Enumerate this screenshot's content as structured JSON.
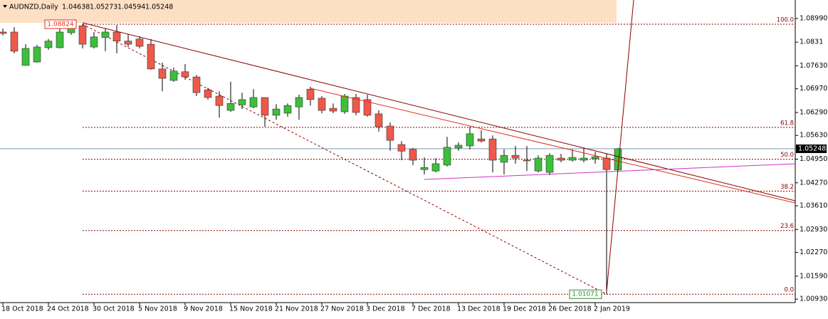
{
  "chart_data": {
    "type": "candlestick",
    "title": "AUDNZD,Daily",
    "up_color": "#3cbf3c",
    "down_color": "#f0584a",
    "categories": [
      "18 Oct 2018",
      null,
      null,
      null,
      "24 Oct 2018",
      null,
      null,
      null,
      "30 Oct 2018",
      null,
      null,
      null,
      "5 Nov 2018",
      null,
      null,
      null,
      "9 Nov 2018",
      null,
      null,
      null,
      "15 Nov 2018",
      null,
      null,
      null,
      "21 Nov 2018",
      null,
      null,
      null,
      "27 Nov 2018",
      null,
      null,
      null,
      "3 Dec 2018",
      null,
      null,
      null,
      "7 Dec 2018",
      null,
      null,
      null,
      "13 Dec 2018",
      null,
      null,
      null,
      "19 Dec 2018",
      null,
      null,
      null,
      "26 Dec 2018",
      null,
      null,
      null,
      "2 Jan 2019",
      null,
      null
    ],
    "open": [
      1.086,
      1.086,
      1.0764,
      1.0774,
      1.0815,
      1.0815,
      1.0858,
      1.0878,
      1.0817,
      1.0844,
      1.086,
      1.0834,
      1.084,
      1.0825,
      1.0754,
      1.0721,
      1.0746,
      1.0731,
      1.0694,
      1.0676,
      1.0635,
      1.0651,
      1.0645,
      1.0672,
      1.0621,
      1.0627,
      1.0645,
      1.0696,
      1.067,
      1.0641,
      1.0631,
      1.0672,
      1.0666,
      1.0625,
      1.059,
      1.0537,
      1.0523,
      1.0465,
      1.0461,
      1.0478,
      1.0527,
      1.0533,
      1.0553,
      1.0553,
      1.0486,
      1.0506,
      1.0492,
      1.0461,
      1.0457,
      1.0498,
      1.0492,
      1.0492,
      1.0496,
      1.0498,
      1.04638
    ],
    "high": [
      1.087,
      1.0874,
      1.0825,
      1.0823,
      1.084,
      1.0878,
      1.088,
      1.08824,
      1.086,
      1.087,
      1.088,
      1.0854,
      1.0848,
      1.084,
      1.0772,
      1.0758,
      1.0768,
      1.0737,
      1.07,
      1.069,
      1.0717,
      1.0686,
      1.0696,
      1.0672,
      1.0653,
      1.0655,
      1.068,
      1.0703,
      1.0676,
      1.0655,
      1.0682,
      1.0682,
      1.068,
      1.0635,
      1.06,
      1.0547,
      1.0527,
      1.05,
      1.0498,
      1.0559,
      1.0543,
      1.0588,
      1.0578,
      1.0563,
      1.0523,
      1.0533,
      1.0533,
      1.0506,
      1.0512,
      1.051,
      1.0523,
      1.0527,
      1.0516,
      1.0512,
      1.05273
    ],
    "low": [
      1.085,
      1.0799,
      1.0764,
      1.0772,
      1.0809,
      1.0813,
      1.0852,
      1.0813,
      1.0813,
      1.0805,
      1.0799,
      1.0817,
      1.0813,
      1.0752,
      1.069,
      1.0717,
      1.0723,
      1.0676,
      1.0666,
      1.0614,
      1.0631,
      1.0639,
      1.0641,
      1.0588,
      1.0608,
      1.0617,
      1.0608,
      1.0649,
      1.0627,
      1.0627,
      1.0625,
      1.0621,
      1.0617,
      1.0574,
      1.0519,
      1.0492,
      1.0478,
      1.0451,
      1.0457,
      1.0474,
      1.0519,
      1.0523,
      1.0543,
      1.0457,
      1.0451,
      1.0482,
      1.0461,
      1.0457,
      1.0449,
      1.0486,
      1.0488,
      1.0486,
      1.0482,
      1.01071,
      1.04594
    ],
    "close": [
      1.0856,
      1.0805,
      1.0813,
      1.0817,
      1.0834,
      1.086,
      1.0874,
      1.0825,
      1.0846,
      1.086,
      1.0834,
      1.0825,
      1.0819,
      1.0754,
      1.0727,
      1.0748,
      1.0731,
      1.0686,
      1.0672,
      1.0649,
      1.0655,
      1.0666,
      1.0672,
      1.0621,
      1.0639,
      1.0649,
      1.0672,
      1.0666,
      1.0635,
      1.0633,
      1.0676,
      1.0629,
      1.0621,
      1.0588,
      1.0549,
      1.0518,
      1.0492,
      1.0471,
      1.0482,
      1.0529,
      1.0535,
      1.0568,
      1.0547,
      1.0492,
      1.0506,
      1.0498,
      1.049,
      1.0498,
      1.0506,
      1.0492,
      1.05,
      1.0498,
      1.0502,
      1.0465,
      1.05248
    ],
    "ylim": [
      1.0083,
      1.0952
    ],
    "yticks": [
      {
        "value": 1.0899,
        "label": "1.08990"
      },
      1.0831,
      {
        "value": 1.0763,
        "label": "1.07630"
      },
      {
        "value": 1.0697,
        "label": "1.06970"
      },
      {
        "value": 1.0629,
        "label": "1.06290"
      },
      {
        "value": 1.0563,
        "label": "1.05630"
      },
      {
        "value": 1.0495,
        "label": "1.04950"
      },
      {
        "value": 1.0427,
        "label": "1.04270"
      },
      {
        "value": 1.0361,
        "label": "1.03610"
      },
      {
        "value": 1.0293,
        "label": "1.02930"
      },
      {
        "value": 1.0227,
        "label": "1.02270"
      },
      {
        "value": 1.0159,
        "label": "1.01590"
      },
      {
        "value": 1.0093,
        "label": "1.00930"
      }
    ],
    "fib_levels": [
      {
        "value": 100,
        "label": "100.0"
      },
      61.8,
      {
        "value": 50,
        "label": "50.0"
      },
      38.2,
      23.6,
      {
        "value": 0,
        "label": "0.0"
      }
    ]
  }
}
